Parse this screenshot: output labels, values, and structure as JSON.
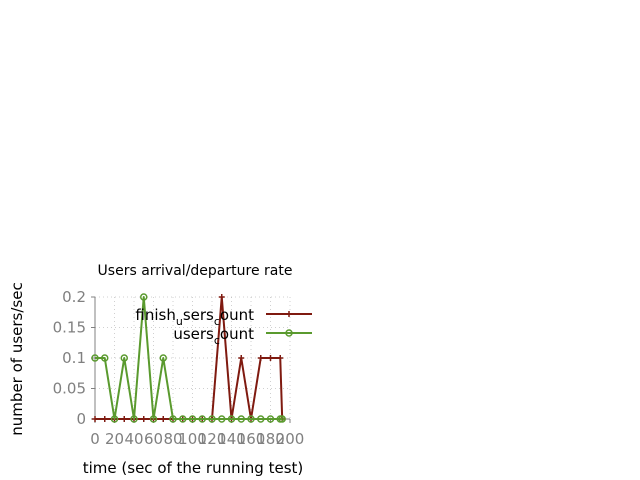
{
  "chart_data": {
    "type": "line",
    "title": "Users arrival/departure rate",
    "xlabel": "time (sec of the running test)",
    "ylabel": "number of users/sec",
    "xlim": [
      0,
      200
    ],
    "ylim": [
      0,
      0.2
    ],
    "xticks": [
      0,
      20,
      40,
      60,
      80,
      100,
      120,
      140,
      160,
      180,
      200
    ],
    "xtick_labels": [
      "0",
      "20",
      "40",
      "60",
      "80",
      "100",
      "120",
      "140",
      "160",
      "180",
      "200"
    ],
    "yticks": [
      0,
      0.05,
      0.1,
      0.15,
      0.2
    ],
    "ytick_labels": [
      "0",
      "0.05",
      "0.1",
      "0.15",
      "0.2"
    ],
    "grid": true,
    "legend_position": "top-right",
    "series": [
      {
        "name": "finish_users_count",
        "legend_main": "finish",
        "legend_sub1": "u",
        "legend_mid": "sers",
        "legend_sub2": "c",
        "legend_tail": "ount",
        "color": "#7f1a10",
        "marker": "plus",
        "points": [
          [
            0,
            0
          ],
          [
            10,
            0
          ],
          [
            20,
            0
          ],
          [
            30,
            0
          ],
          [
            40,
            0
          ],
          [
            50,
            0
          ],
          [
            60,
            0
          ],
          [
            70,
            0
          ],
          [
            80,
            0
          ],
          [
            90,
            0
          ],
          [
            100,
            0
          ],
          [
            110,
            0
          ],
          [
            120,
            0
          ],
          [
            130,
            0.2
          ],
          [
            140,
            0
          ],
          [
            150,
            0.1
          ],
          [
            160,
            0
          ],
          [
            170,
            0.1
          ],
          [
            180,
            0.1
          ],
          [
            190,
            0.1
          ],
          [
            192,
            0
          ]
        ]
      },
      {
        "name": "users_count",
        "legend_main": "users",
        "legend_sub1": "c",
        "legend_tail": "ount",
        "color": "#5a9a2e",
        "marker": "circle",
        "points": [
          [
            0,
            0.1
          ],
          [
            10,
            0.1
          ],
          [
            20,
            0
          ],
          [
            30,
            0.1
          ],
          [
            40,
            0
          ],
          [
            50,
            0.2
          ],
          [
            60,
            0
          ],
          [
            70,
            0.1
          ],
          [
            80,
            0
          ],
          [
            90,
            0
          ],
          [
            100,
            0
          ],
          [
            110,
            0
          ],
          [
            120,
            0
          ],
          [
            130,
            0
          ],
          [
            140,
            0
          ],
          [
            150,
            0
          ],
          [
            160,
            0
          ],
          [
            170,
            0
          ],
          [
            180,
            0
          ],
          [
            190,
            0
          ],
          [
            192,
            0
          ]
        ]
      }
    ]
  }
}
